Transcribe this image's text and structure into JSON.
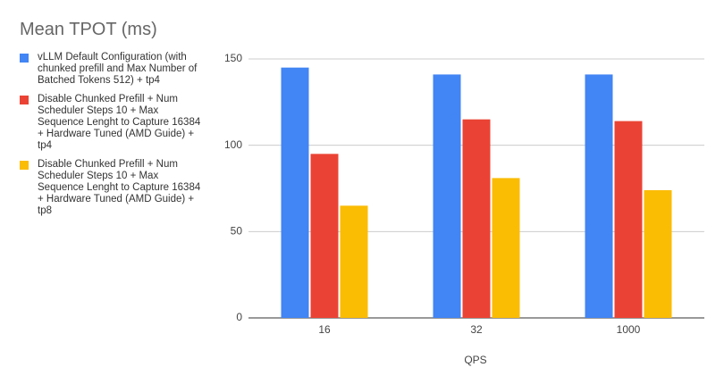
{
  "chart_data": {
    "type": "bar",
    "title": "Mean TPOT (ms)",
    "x_label": "QPS",
    "categories": [
      "16",
      "32",
      "1000"
    ],
    "series": [
      {
        "name": "vLLM Default Configuration (with chunked prefill and Max Number of Batched Tokens 512) + tp4",
        "color": "#4285f4",
        "values": [
          145,
          141,
          141
        ]
      },
      {
        "name": "Disable Chunked Prefill + Num Scheduler Steps 10 + Max Sequence Lenght to Capture 16384 + Hardware Tuned (AMD Guide) + tp4",
        "color": "#ea4335",
        "values": [
          95,
          115,
          114
        ]
      },
      {
        "name": "Disable Chunked Prefill + Num Scheduler Steps 10 + Max Sequence Lenght to Capture 16384 + Hardware Tuned (AMD Guide) + tp8",
        "color": "#fbbc04",
        "values": [
          65,
          81,
          74
        ]
      }
    ],
    "ylim": [
      0,
      150
    ],
    "yticks": [
      0,
      50,
      100,
      150
    ],
    "grid": true
  }
}
